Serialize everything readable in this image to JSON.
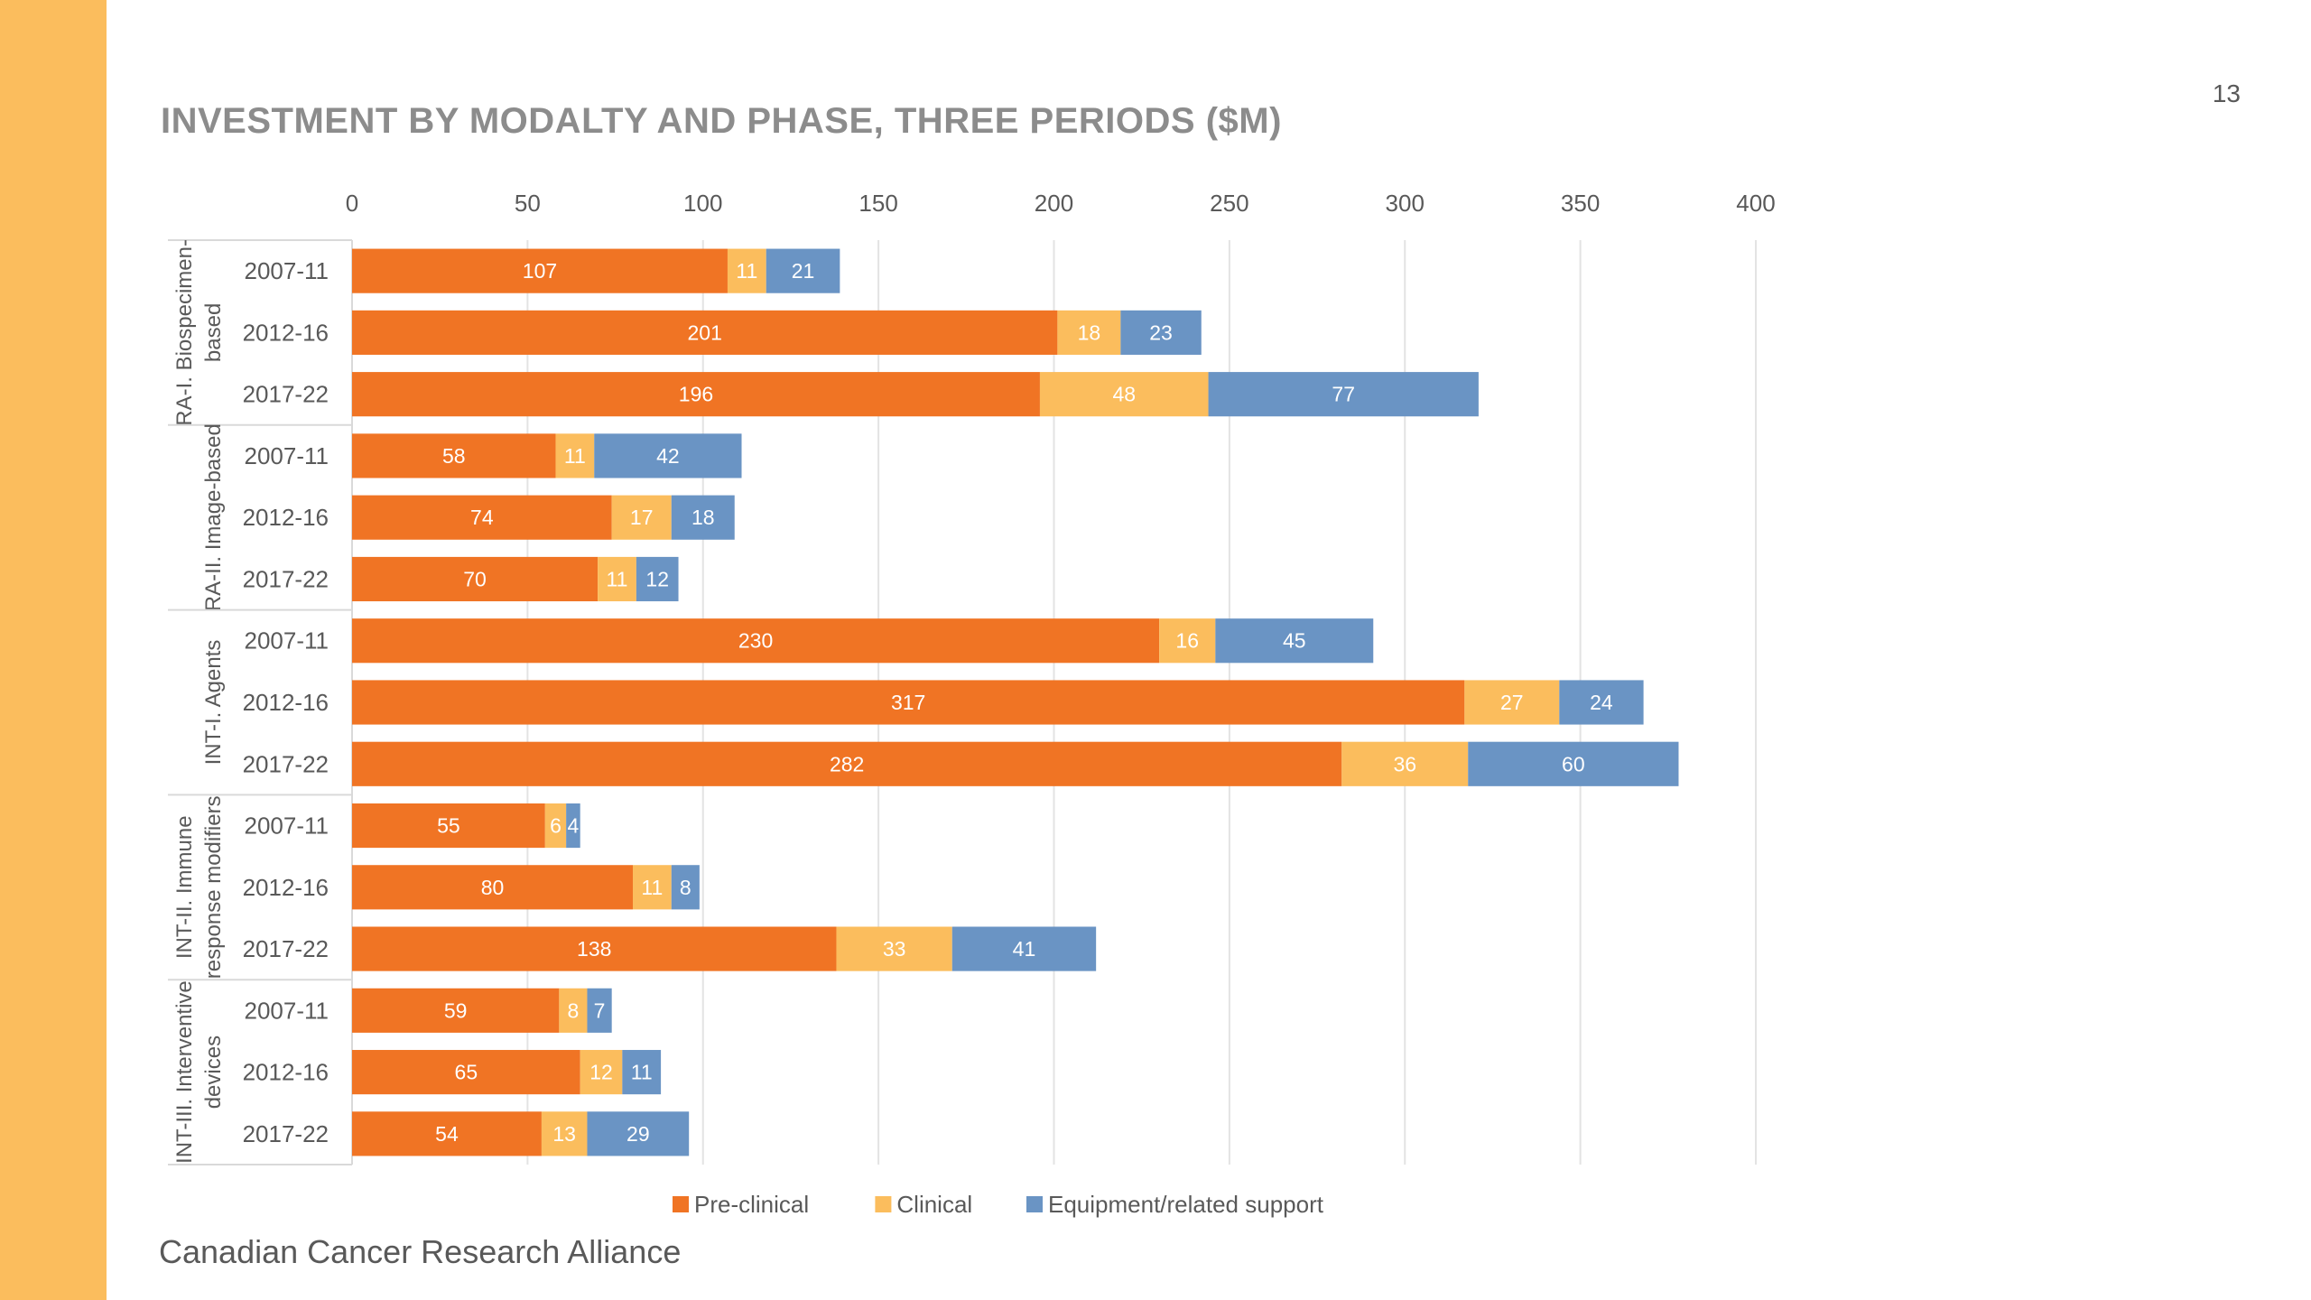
{
  "page": {
    "number": "13",
    "title": "INVESTMENT BY MODALTY AND PHASE, THREE PERIODS ($M)",
    "footer": "Canadian Cancer Research Alliance"
  },
  "colors": {
    "sidebar": "#fbbd5d",
    "title": "#8c8c8c",
    "preclinical": "#f07424",
    "clinical": "#fbbd5d",
    "equipment": "#6a94c4",
    "grid": "#e3e3e3",
    "axis_text": "#595959"
  },
  "chart_data": {
    "type": "bar",
    "orientation": "horizontal",
    "stacked": true,
    "xlim": [
      0,
      400
    ],
    "x_ticks": [
      "0",
      "50",
      "100",
      "150",
      "200",
      "250",
      "300",
      "350",
      "400"
    ],
    "x_axis_position": "top",
    "grid": true,
    "legend_position": "bottom-center",
    "periods": [
      "2007-11",
      "2012-16",
      "2017-22"
    ],
    "groups": [
      {
        "name": "RA-I. Biospecimen-based",
        "label_lines": [
          "RA-I. Biospecimen-",
          "based"
        ]
      },
      {
        "name": "RA-II. Image-based",
        "label_lines": [
          "RA-II. Image-based"
        ]
      },
      {
        "name": "INT-I. Agents",
        "label_lines": [
          "INT-I. Agents"
        ]
      },
      {
        "name": "INT-II. Immune response modifiers",
        "label_lines": [
          "INT-II. Immune",
          "response modifiers"
        ]
      },
      {
        "name": "INT-III. Interventive devices",
        "label_lines": [
          "INT-III. Interventive",
          "devices"
        ]
      }
    ],
    "series": [
      {
        "name": "Pre-clinical",
        "color_key": "preclinical",
        "values": [
          107,
          201,
          196,
          58,
          74,
          70,
          230,
          317,
          282,
          55,
          80,
          138,
          59,
          65,
          54
        ]
      },
      {
        "name": "Clinical",
        "color_key": "clinical",
        "values": [
          11,
          18,
          48,
          11,
          17,
          11,
          16,
          27,
          36,
          6,
          11,
          33,
          8,
          12,
          13
        ]
      },
      {
        "name": "Equipment/related support",
        "color_key": "equipment",
        "values": [
          21,
          23,
          77,
          42,
          18,
          12,
          45,
          24,
          60,
          4,
          8,
          41,
          7,
          11,
          29
        ]
      }
    ]
  }
}
